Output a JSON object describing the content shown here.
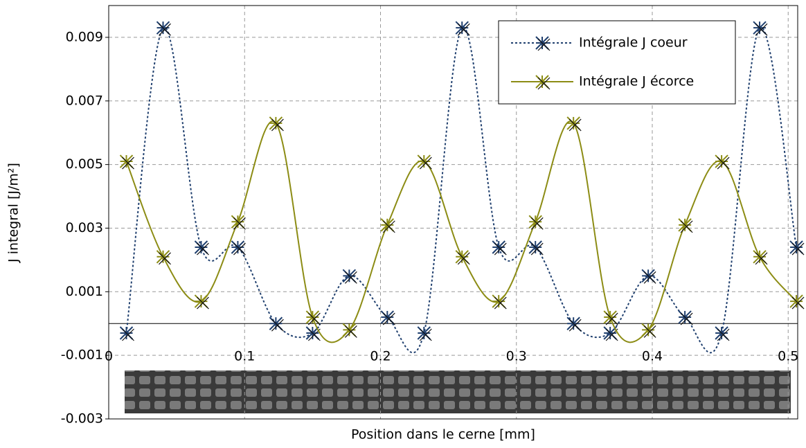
{
  "chart_data": {
    "type": "line",
    "xlabel": "Position dans le cerne [mm]",
    "ylabel": "J integral [J/m²]",
    "x": [
      0.013,
      0.04,
      0.068,
      0.095,
      0.123,
      0.15,
      0.177,
      0.205,
      0.232,
      0.26,
      0.287,
      0.314,
      0.342,
      0.369,
      0.397,
      0.424,
      0.451,
      0.479,
      0.506
    ],
    "series": [
      {
        "name": "Intégrale J coeur",
        "color": "#1f3f6e",
        "dash": "dotted",
        "values": [
          -0.0003,
          0.0093,
          0.0024,
          0.0024,
          0.0,
          -0.0003,
          0.0015,
          0.0002,
          -0.0003,
          0.0093,
          0.0024,
          0.0024,
          0.0,
          -0.0003,
          0.0015,
          0.0002,
          -0.0003,
          0.0093,
          0.0024
        ]
      },
      {
        "name": "Intégrale J écorce",
        "color": "#8c8c14",
        "dash": "solid",
        "values": [
          0.0051,
          0.0021,
          0.0007,
          0.0032,
          0.0063,
          0.0002,
          -0.0002,
          0.0031,
          0.0051,
          0.0021,
          0.0007,
          0.0032,
          0.0063,
          0.0002,
          -0.0002,
          0.0031,
          0.0051,
          0.0021,
          0.0007
        ]
      }
    ],
    "xlim": [
      0,
      0.507
    ],
    "xticks": [
      0,
      0.1,
      0.2,
      0.3,
      0.4,
      0.5
    ],
    "ylim": [
      -0.003,
      0.01
    ],
    "yticks": [
      -0.003,
      -0.001,
      0.001,
      0.003,
      0.005,
      0.007,
      0.009
    ],
    "grid": true,
    "legend": "upper right"
  }
}
